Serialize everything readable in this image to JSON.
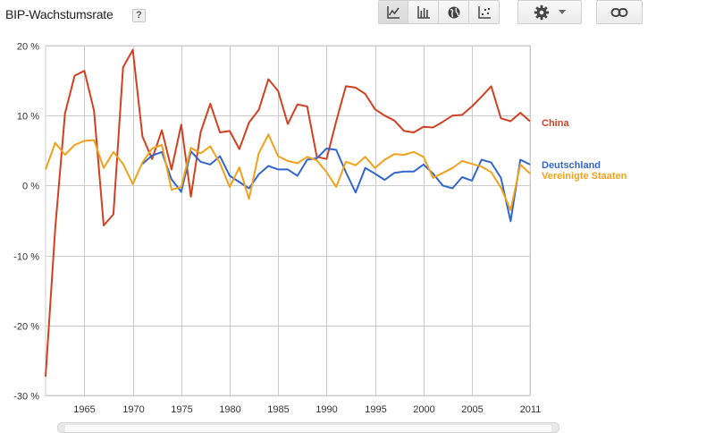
{
  "header": {
    "title": "BIP-Wachstumsrate",
    "help_label": "?"
  },
  "toolbar": {
    "chart_types": [
      {
        "icon": "line-chart-icon",
        "active": true
      },
      {
        "icon": "bar-chart-icon",
        "active": false
      },
      {
        "icon": "globe-map-icon",
        "active": false
      },
      {
        "icon": "scatter-chart-icon",
        "active": false
      }
    ],
    "settings_icon": "gear-icon",
    "settings_caret": "caret-down-icon",
    "link_icon": "link-icon"
  },
  "chart_data": {
    "type": "line",
    "title": "",
    "xlabel": "",
    "ylabel": "",
    "xlim": [
      1961,
      2011
    ],
    "ylim": [
      -30,
      20
    ],
    "x_ticks": [
      1965,
      1970,
      1975,
      1980,
      1985,
      1990,
      1995,
      2000,
      2005,
      2011
    ],
    "x_tick_labels": [
      "1965",
      "1970",
      "1975",
      "1980",
      "1985",
      "1990",
      "1995",
      "2000",
      "2005",
      "2011"
    ],
    "y_ticks": [
      20,
      10,
      0,
      -10,
      -20,
      -30
    ],
    "y_tick_labels": [
      "20 %",
      "10 %",
      "0 %",
      "-10 %",
      "-20 %",
      "-30 %"
    ],
    "grid": true,
    "legend_position": "right, at line ends",
    "series": [
      {
        "name": "China",
        "color": "#d14121",
        "x": [
          1961,
          1962,
          1963,
          1964,
          1965,
          1966,
          1967,
          1968,
          1969,
          1970,
          1971,
          1972,
          1973,
          1974,
          1975,
          1976,
          1977,
          1978,
          1979,
          1980,
          1981,
          1982,
          1983,
          1984,
          1985,
          1986,
          1987,
          1988,
          1989,
          1990,
          1991,
          1992,
          1993,
          1994,
          1995,
          1996,
          1997,
          1998,
          1999,
          2000,
          2001,
          2002,
          2003,
          2004,
          2005,
          2006,
          2007,
          2008,
          2009,
          2010,
          2011
        ],
        "values": [
          -27.3,
          -6.1,
          10.3,
          15.7,
          16.4,
          10.7,
          -5.7,
          -4.1,
          16.9,
          19.4,
          7.0,
          3.8,
          7.9,
          2.3,
          8.7,
          -1.6,
          7.6,
          11.7,
          7.6,
          7.8,
          5.2,
          9.0,
          10.8,
          15.2,
          13.5,
          8.8,
          11.6,
          11.3,
          4.1,
          3.8,
          9.2,
          14.2,
          14.0,
          13.1,
          10.9,
          10.0,
          9.3,
          7.8,
          7.6,
          8.4,
          8.3,
          9.1,
          10.0,
          10.1,
          11.3,
          12.7,
          14.2,
          9.6,
          9.2,
          10.4,
          9.2
        ]
      },
      {
        "name": "Deutschland",
        "color": "#3366cc",
        "x": [
          1971,
          1972,
          1973,
          1974,
          1975,
          1976,
          1977,
          1978,
          1979,
          1980,
          1981,
          1982,
          1983,
          1984,
          1985,
          1986,
          1987,
          1988,
          1989,
          1990,
          1991,
          1992,
          1993,
          1994,
          1995,
          1996,
          1997,
          1998,
          1999,
          2000,
          2001,
          2002,
          2003,
          2004,
          2005,
          2006,
          2007,
          2008,
          2009,
          2010,
          2011
        ],
        "values": [
          3.1,
          4.3,
          4.8,
          0.9,
          -0.9,
          4.9,
          3.4,
          3.0,
          4.2,
          1.4,
          0.5,
          -0.4,
          1.6,
          2.8,
          2.3,
          2.3,
          1.4,
          3.7,
          3.9,
          5.3,
          5.1,
          1.9,
          -1.0,
          2.5,
          1.7,
          0.8,
          1.8,
          2.0,
          2.0,
          3.0,
          1.7,
          0.0,
          -0.4,
          1.2,
          0.7,
          3.7,
          3.3,
          1.1,
          -5.1,
          3.7,
          3.0
        ]
      },
      {
        "name": "Vereinigte Staaten",
        "color": "#f1a11b",
        "x": [
          1961,
          1962,
          1963,
          1964,
          1965,
          1966,
          1967,
          1968,
          1969,
          1970,
          1971,
          1972,
          1973,
          1974,
          1975,
          1976,
          1977,
          1978,
          1979,
          1980,
          1981,
          1982,
          1983,
          1984,
          1985,
          1986,
          1987,
          1988,
          1989,
          1990,
          1991,
          1992,
          1993,
          1994,
          1995,
          1996,
          1997,
          1998,
          1999,
          2000,
          2001,
          2002,
          2003,
          2004,
          2005,
          2006,
          2007,
          2008,
          2009,
          2010,
          2011
        ],
        "values": [
          2.3,
          6.1,
          4.4,
          5.8,
          6.4,
          6.5,
          2.5,
          4.8,
          3.1,
          0.2,
          3.3,
          5.3,
          5.8,
          -0.6,
          -0.2,
          5.4,
          4.6,
          5.6,
          3.2,
          -0.2,
          2.6,
          -1.9,
          4.6,
          7.3,
          4.2,
          3.5,
          3.2,
          4.1,
          3.6,
          1.9,
          -0.2,
          3.4,
          2.9,
          4.1,
          2.5,
          3.7,
          4.5,
          4.4,
          4.8,
          4.1,
          1.1,
          1.8,
          2.5,
          3.5,
          3.1,
          2.7,
          1.9,
          -0.3,
          -3.5,
          3.0,
          1.7
        ]
      }
    ]
  }
}
